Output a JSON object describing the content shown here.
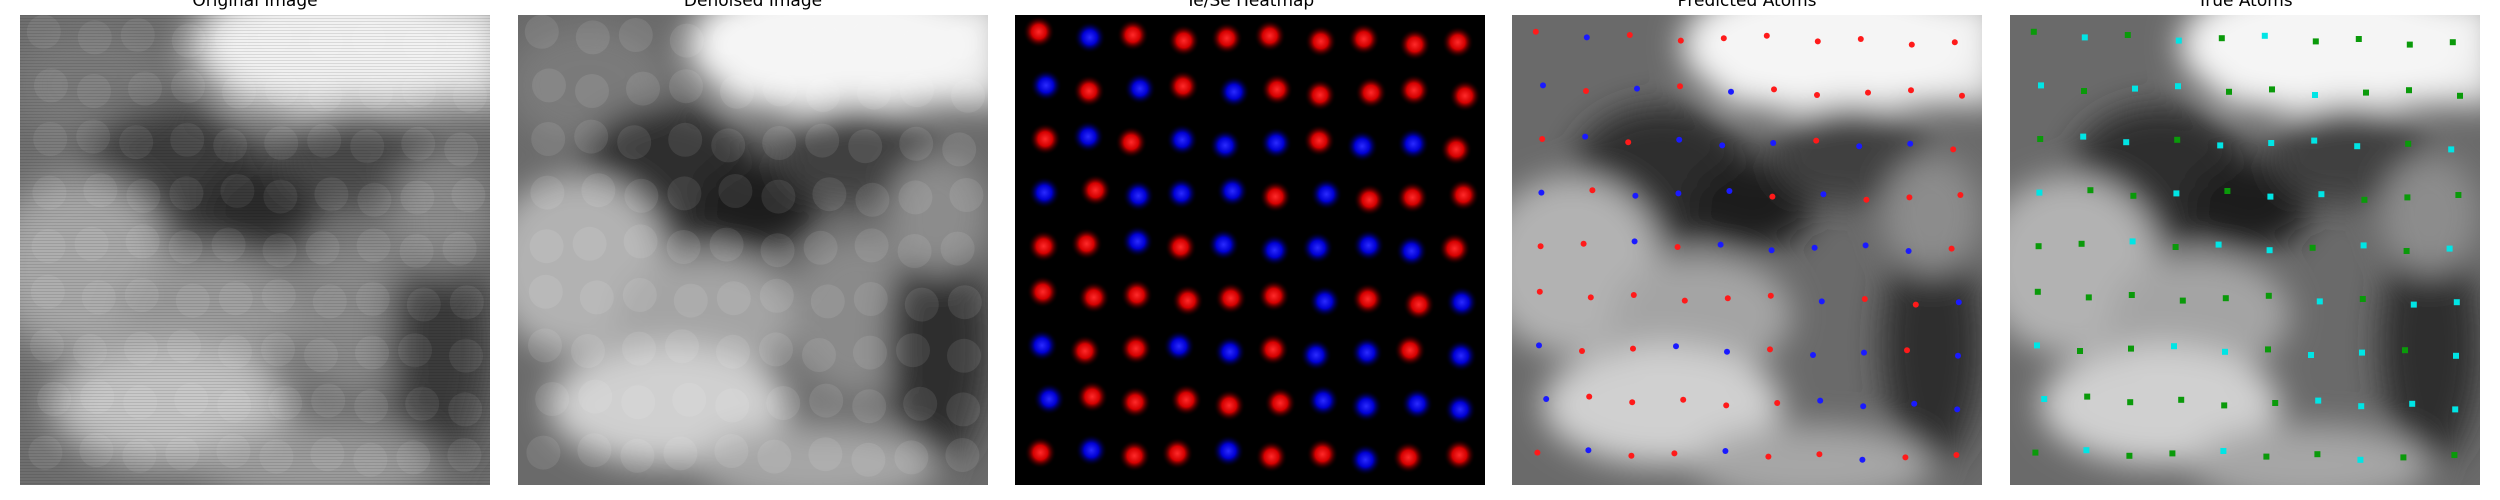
{
  "panels": [
    {
      "id": "original",
      "title": "Original Image"
    },
    {
      "id": "denoised",
      "title": "Denoised Image"
    },
    {
      "id": "heatmap",
      "title": "Te/Se Heatmap"
    },
    {
      "id": "predicted",
      "title": "Predicted Atoms"
    },
    {
      "id": "true",
      "title": "True Atoms"
    }
  ],
  "colors": {
    "te": "#ff1a1a",
    "se": "#1a1aff",
    "true_a": "#00e5e5",
    "true_b": "#0a9a0a",
    "heatmap_background": "#000000"
  },
  "atom_grid": {
    "rows": [
      "RBRRRRRRRR",
      "BRBRBRRRRR",
      "RBRBBBRBBR",
      "BRBBBRBRRR",
      "RRBRBBBBBR",
      "RRRRRRBRRB",
      "BRRBBRBBRB",
      "BRRRRRBBBB",
      "RBRRBRRBRR"
    ]
  },
  "true_grid": {
    "rows": [
      "GCGCGCGGGG",
      "CGCCGGCGGG",
      "GCCGCCCCGC",
      "CGGCGCCGGG",
      "GGCGCCGCGC",
      "GGGGGGCGCC",
      "CGGCCGCCGC",
      "CGGGGGCCCC",
      "GCGGCGGCGG"
    ]
  }
}
